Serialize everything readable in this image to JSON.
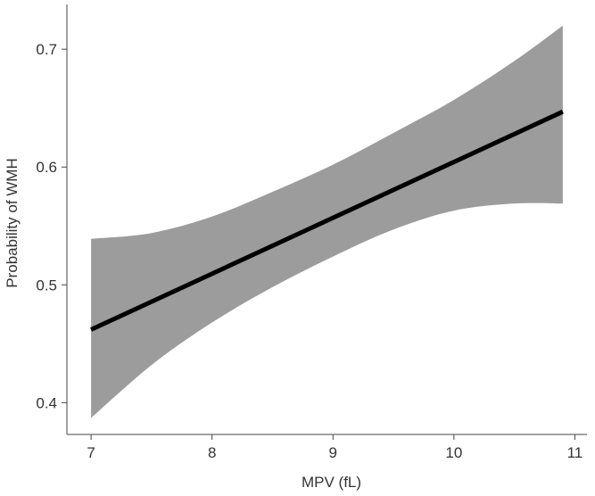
{
  "chart_data": {
    "type": "line",
    "title": "",
    "xlabel": "MPV (fL)",
    "ylabel": "Probability of WMH",
    "xlim": [
      6.8,
      11.1
    ],
    "ylim": [
      0.373,
      0.738
    ],
    "xticks": [
      7,
      8,
      9,
      10,
      11
    ],
    "xtick_labels": [
      "7",
      "8",
      "9",
      "10",
      "11"
    ],
    "yticks": [
      0.4,
      0.5,
      0.6,
      0.7
    ],
    "ytick_labels": [
      "0.4",
      "0.5",
      "0.6",
      "0.7"
    ],
    "grid": false,
    "legend": "none",
    "series": [
      {
        "type": "line",
        "x": [
          7.0,
          10.9
        ],
        "y": [
          0.462,
          0.647
        ]
      },
      {
        "type": "band",
        "x": [
          7.0,
          7.5,
          8.0,
          8.5,
          9.0,
          9.5,
          10.0,
          10.5,
          10.9
        ],
        "lower": [
          0.387,
          0.432,
          0.468,
          0.498,
          0.524,
          0.547,
          0.563,
          0.569,
          0.569
        ],
        "upper": [
          0.539,
          0.544,
          0.558,
          0.579,
          0.602,
          0.629,
          0.657,
          0.69,
          0.72
        ]
      }
    ],
    "colors": {
      "line": "#000000",
      "band": "#9c9c9c",
      "axis": "#444444",
      "text": "#333333"
    }
  }
}
